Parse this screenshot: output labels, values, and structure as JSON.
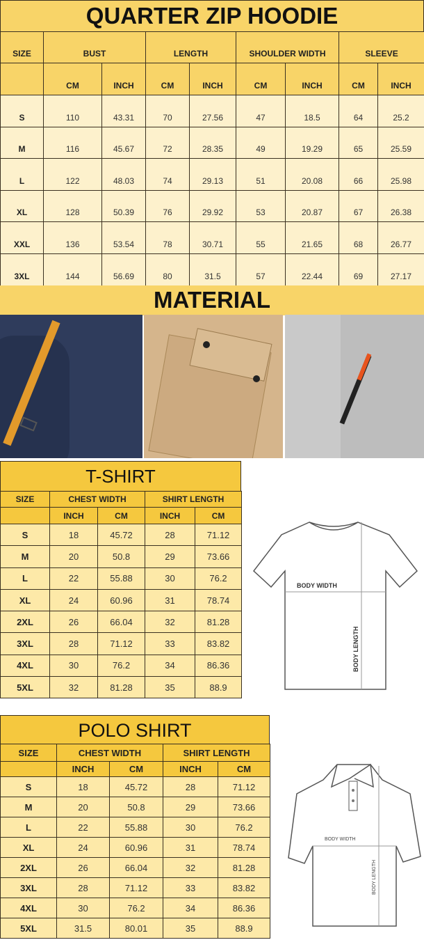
{
  "hoodie": {
    "title": "QUARTER ZIP HOODIE",
    "size_header": "SIZE",
    "groups": [
      "BUST",
      "LENGTH",
      "SHOULDER WIDTH",
      "SLEEVE"
    ],
    "units": [
      "CM",
      "INCH",
      "CM",
      "INCH",
      "CM",
      "INCH",
      "CM",
      "INCH"
    ],
    "rows": [
      [
        "S",
        "110",
        "43.31",
        "70",
        "27.56",
        "47",
        "18.5",
        "64",
        "25.2"
      ],
      [
        "M",
        "116",
        "45.67",
        "72",
        "28.35",
        "49",
        "19.29",
        "65",
        "25.59"
      ],
      [
        "L",
        "122",
        "48.03",
        "74",
        "29.13",
        "51",
        "20.08",
        "66",
        "25.98"
      ],
      [
        "XL",
        "128",
        "50.39",
        "76",
        "29.92",
        "53",
        "20.87",
        "67",
        "26.38"
      ],
      [
        "XXL",
        "136",
        "53.54",
        "78",
        "30.71",
        "55",
        "21.65",
        "68",
        "26.77"
      ],
      [
        "3XL",
        "144",
        "56.69",
        "80",
        "31.5",
        "57",
        "22.44",
        "69",
        "27.17"
      ]
    ]
  },
  "material": {
    "title": "MATERIAL",
    "photos": [
      "navy-fabric-strap",
      "tan-fabric-pocket",
      "gray-fabric-zipper"
    ]
  },
  "tshirt": {
    "title": "T-SHIRT",
    "size_header": "SIZE",
    "groups": [
      "CHEST WIDTH",
      "SHIRT LENGTH"
    ],
    "units": [
      "INCH",
      "CM",
      "INCH",
      "CM"
    ],
    "rows": [
      [
        "S",
        "18",
        "45.72",
        "28",
        "71.12"
      ],
      [
        "M",
        "20",
        "50.8",
        "29",
        "73.66"
      ],
      [
        "L",
        "22",
        "55.88",
        "30",
        "76.2"
      ],
      [
        "XL",
        "24",
        "60.96",
        "31",
        "78.74"
      ],
      [
        "2XL",
        "26",
        "66.04",
        "32",
        "81.28"
      ],
      [
        "3XL",
        "28",
        "71.12",
        "33",
        "83.82"
      ],
      [
        "4XL",
        "30",
        "76.2",
        "34",
        "86.36"
      ],
      [
        "5XL",
        "32",
        "81.28",
        "35",
        "88.9"
      ]
    ],
    "diagram": {
      "width_label": "BODY WIDTH",
      "length_label": "BODY LENGTH"
    }
  },
  "polo": {
    "title": "POLO SHIRT",
    "size_header": "SIZE",
    "groups": [
      "CHEST WIDTH",
      "SHIRT LENGTH"
    ],
    "units": [
      "INCH",
      "CM",
      "INCH",
      "CM"
    ],
    "rows": [
      [
        "S",
        "18",
        "45.72",
        "28",
        "71.12"
      ],
      [
        "M",
        "20",
        "50.8",
        "29",
        "73.66"
      ],
      [
        "L",
        "22",
        "55.88",
        "30",
        "76.2"
      ],
      [
        "XL",
        "24",
        "60.96",
        "31",
        "78.74"
      ],
      [
        "2XL",
        "26",
        "66.04",
        "32",
        "81.28"
      ],
      [
        "3XL",
        "28",
        "71.12",
        "33",
        "83.82"
      ],
      [
        "4XL",
        "30",
        "76.2",
        "34",
        "86.36"
      ],
      [
        "5XL",
        "31.5",
        "80.01",
        "35",
        "88.9"
      ]
    ],
    "diagram": {
      "width_label": "BODY WIDTH",
      "length_label": "BODY LENGTH"
    }
  },
  "colors": {
    "header_yellow": "#f8d468",
    "row_cream": "#fdf1cc",
    "row_yellow": "#fde9a8"
  }
}
